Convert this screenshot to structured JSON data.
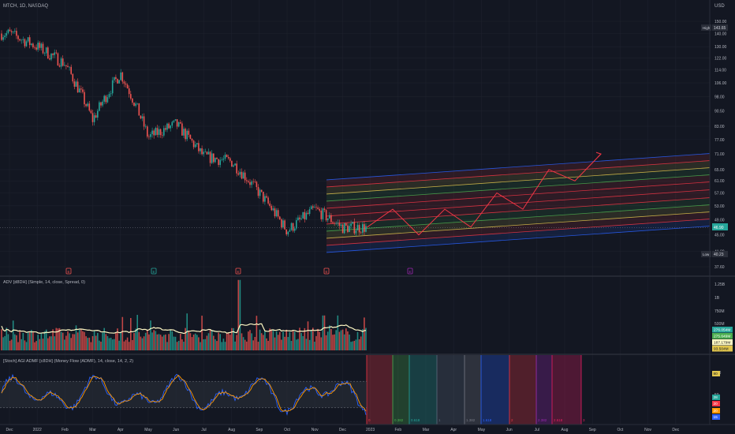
{
  "header": {
    "symbol_line": "MTCH, 1D, NASDAQ"
  },
  "price_axis": {
    "currency": "USD",
    "ticks": [
      "150.00",
      "140.00",
      "130.00",
      "122.00",
      "114.00",
      "106.00",
      "98.00",
      "90.50",
      "83.00",
      "77.00",
      "71.00",
      "65.00",
      "61.00",
      "57.00",
      "53.00",
      "49.00",
      "45.00",
      "41.00",
      "37.60"
    ],
    "high_label": "High",
    "high_value": "143.65",
    "last_value": "46.90",
    "low_label": "Low",
    "low_value": "40.23"
  },
  "event_markers": [
    "E",
    "E",
    "E",
    "E",
    "E"
  ],
  "volume_pane": {
    "title": "ADV [d8DH] (Simple, 14, close, Spread, 0)",
    "ticks": [
      "1.25B",
      "1B",
      "750M",
      "500M"
    ],
    "badges": [
      "276.054M",
      "275.649M",
      "187.179M",
      "93.504M"
    ]
  },
  "stoch_pane": {
    "title": "[Stoch] AGI ADMF [c8DH] (Money Flow (ADMF), 14, close, 14, 2, 2)",
    "ticks": [
      "100",
      "50",
      "0"
    ],
    "badges": [
      "80",
      "28",
      "20",
      "20",
      "15"
    ],
    "fib_labels": [
      "0",
      "0.382",
      "0.618",
      "1",
      "1.382",
      "1.618",
      "2",
      "2.382",
      "2.618",
      "3"
    ]
  },
  "time_axis": {
    "labels": [
      "Dec",
      "2022",
      "Feb",
      "Mar",
      "Apr",
      "May",
      "Jun",
      "Jul",
      "Aug",
      "Sep",
      "Oct",
      "Nov",
      "Dec",
      "2023",
      "Feb",
      "Mar",
      "Apr",
      "May",
      "Jun",
      "Jul",
      "Aug",
      "Sep",
      "Oct",
      "Nov",
      "Dec"
    ]
  },
  "colors": {
    "background": "#131722",
    "up": "#26a69a",
    "down": "#ef5350",
    "channel_blue": "#2962ff",
    "channel_red": "#f23645",
    "channel_yellow": "#e0c54d",
    "channel_green": "#4caf50",
    "ma_line": "#fff9c4",
    "stoch_k": "#2962ff",
    "stoch_d": "#ff9800",
    "projection": "#f23645"
  },
  "chart_data": {
    "type": "candlestick",
    "price_range": [
      37.6,
      150
    ],
    "last_price": 46.9,
    "period_high": 143.65,
    "period_low": 40.23,
    "approx_closes": [
      {
        "x": "Dec",
        "y": 140
      },
      {
        "x": "2022",
        "y": 130
      },
      {
        "x": "Feb",
        "y": 118
      },
      {
        "x": "Mar",
        "y": 86
      },
      {
        "x": "Apr",
        "y": 112
      },
      {
        "x": "May",
        "y": 78
      },
      {
        "x": "Jun",
        "y": 84
      },
      {
        "x": "Jul",
        "y": 70
      },
      {
        "x": "Aug",
        "y": 68
      },
      {
        "x": "Sep",
        "y": 57
      },
      {
        "x": "Oct",
        "y": 46
      },
      {
        "x": "Nov",
        "y": 52
      },
      {
        "x": "Dec",
        "y": 46.9
      }
    ],
    "projected_path": [
      {
        "x": "Dec",
        "y": 46.9
      },
      {
        "x": "2023",
        "y": 52
      },
      {
        "x": "Feb",
        "y": 45
      },
      {
        "x": "Mar",
        "y": 52
      },
      {
        "x": "Apr",
        "y": 47
      },
      {
        "x": "May",
        "y": 57
      },
      {
        "x": "Jun",
        "y": 52
      },
      {
        "x": "Jul",
        "y": 65
      },
      {
        "x": "Aug",
        "y": 61
      },
      {
        "x": "Sep",
        "y": 71
      }
    ]
  }
}
